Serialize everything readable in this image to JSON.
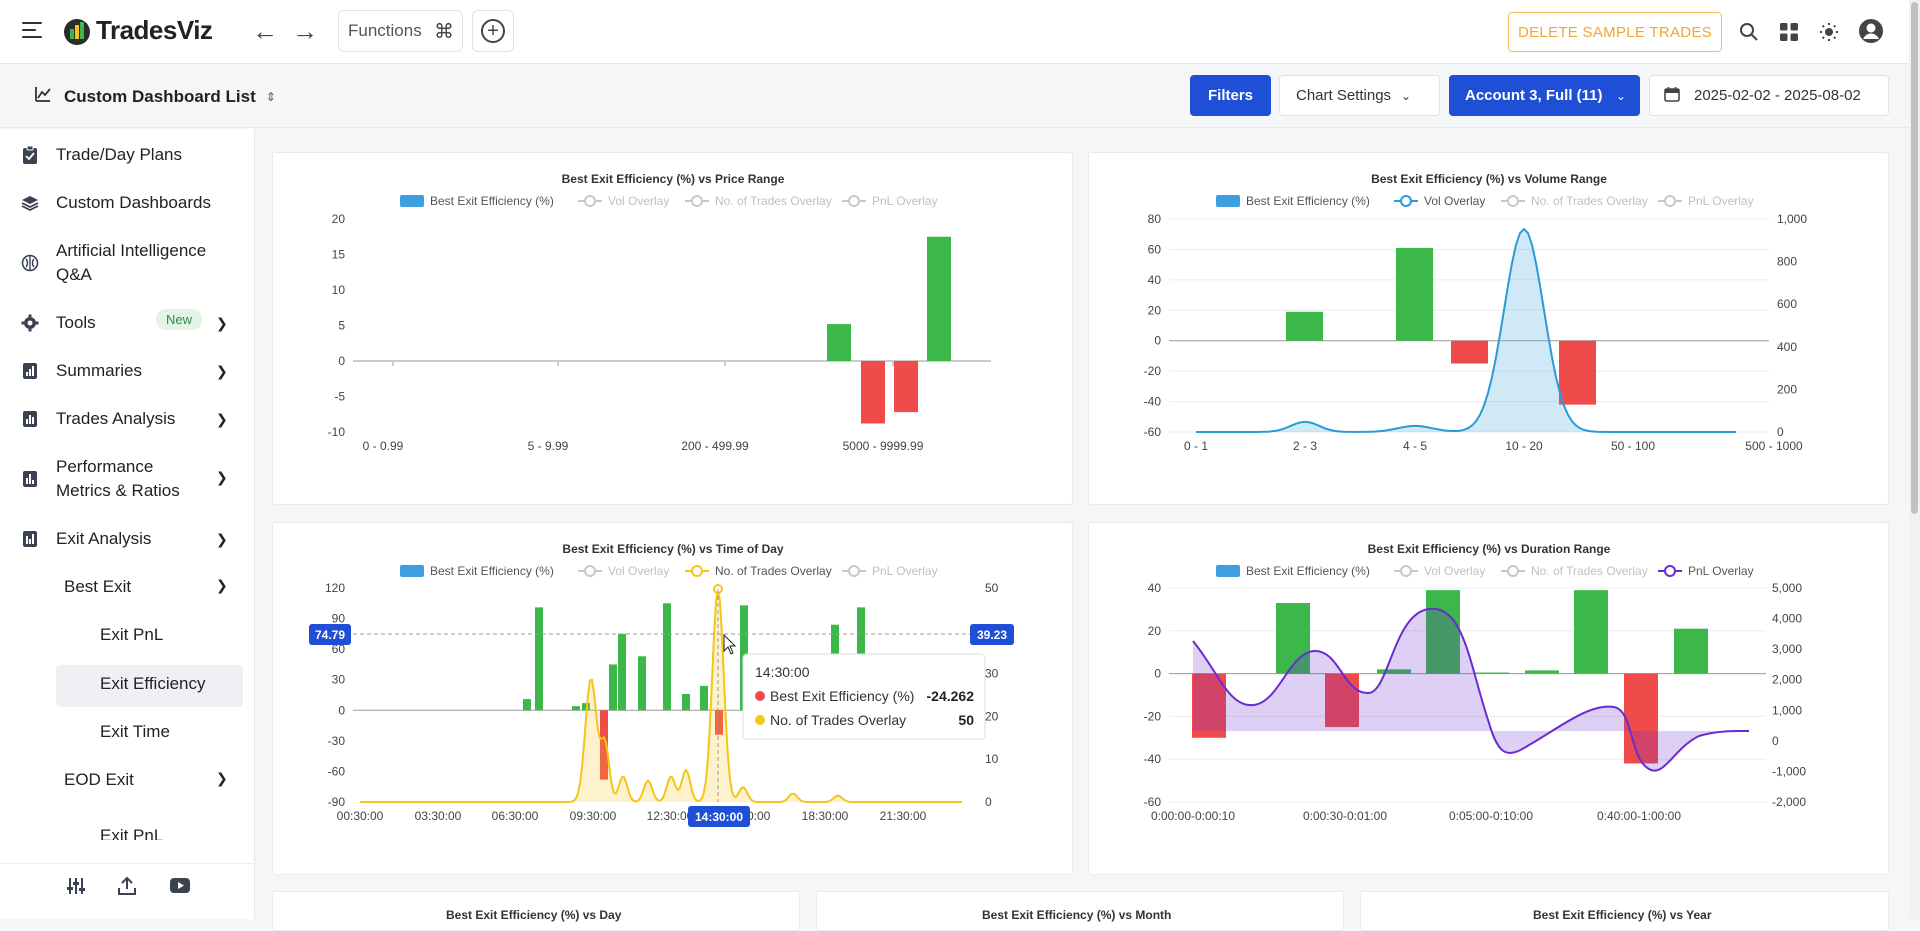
{
  "header": {
    "logo_text": "TradesViz",
    "functions_label": "Functions",
    "delete_label": "DELETE SAMPLE TRADES"
  },
  "subheader": {
    "dashboard_list": "Custom Dashboard List",
    "filters": "Filters",
    "chart_settings": "Chart Settings",
    "account": "Account 3, Full (11)",
    "date_range": "2025-02-02 - 2025-08-02"
  },
  "sidebar": {
    "items": [
      {
        "label": "Trade/Day Plans"
      },
      {
        "label": "Custom Dashboards"
      },
      {
        "label": "Artificial Intelligence Q&A"
      },
      {
        "label": "Tools",
        "badge": "New"
      },
      {
        "label": "Summaries"
      },
      {
        "label": "Trades Analysis"
      },
      {
        "label": "Performance Metrics & Ratios"
      },
      {
        "label": "Exit Analysis"
      }
    ],
    "sub": {
      "best_exit": "Best Exit",
      "exit_pnl": "Exit PnL",
      "exit_efficiency": "Exit Efficiency",
      "exit_time": "Exit Time",
      "eod_exit": "EOD Exit",
      "eod_exit_pnl": "Exit PnL"
    }
  },
  "legend": {
    "bee": "Best Exit Efficiency (%)",
    "vol": "Vol Overlay",
    "trades": "No. of Trades Overlay",
    "pnl": "PnL Overlay"
  },
  "tooltip": {
    "time": "14:30:00",
    "bee_label": "Best Exit Efficiency (%)",
    "bee_value": "-24.262",
    "trades_label": "No. of Trades Overlay",
    "trades_value": "50"
  },
  "crosshair": {
    "y_left": "74.79",
    "y_right": "39.23",
    "x_label": "14:30:00"
  },
  "bottom_titles": {
    "day": "Best Exit Efficiency (%) vs Day",
    "month": "Best Exit Efficiency (%) vs Month",
    "year": "Best Exit Efficiency (%) vs Year"
  },
  "colors": {
    "pos": "#3cb84a",
    "neg": "#f04b4b",
    "vol": "#2a9ad8",
    "trades": "#f5c518",
    "pnl": "#6a2bd0"
  },
  "chart_data": [
    {
      "type": "bar",
      "title": "Best Exit Efficiency (%)  vs Price Range",
      "ylim": [
        -10,
        20
      ],
      "yticks": [
        20,
        15,
        10,
        5,
        0,
        -5,
        -10
      ],
      "tick_labels": [
        "0 - 0.99",
        "5 - 9.99",
        "200 - 499.99",
        "5000 - 9999.99"
      ],
      "values": [
        5.2,
        -8.8,
        -7.2,
        17.5
      ]
    },
    {
      "type": "bar",
      "title": "Best Exit Efficiency (%)  vs Volume Range",
      "ylim": [
        -60,
        80
      ],
      "yticks": [
        80,
        60,
        40,
        20,
        0,
        -20,
        -40,
        -60
      ],
      "yticks_right": [
        "1,000",
        "800",
        "600",
        "400",
        "200",
        "0"
      ],
      "tick_labels": [
        "0 - 1",
        "2 - 3",
        "4 - 5",
        "10 - 20",
        "50 - 100",
        "500 - 1000"
      ],
      "values": [
        19,
        61,
        -15,
        -42
      ],
      "vol_overlay_peak": 1000
    },
    {
      "type": "bar",
      "title": "Best Exit Efficiency (%)  vs Time of Day",
      "ylim": [
        -90,
        120
      ],
      "yticks": [
        120,
        90,
        60,
        30,
        0,
        -30,
        -60,
        -90
      ],
      "yticks_right": [
        "50",
        "40",
        "30",
        "20",
        "10",
        "0"
      ],
      "tick_labels": [
        "00:30:00",
        "03:30:00",
        "06:30:00",
        "09:30:00",
        "12:30:00",
        "15:30:00",
        "18:30:00",
        "21:30:00"
      ],
      "values": [
        11,
        101,
        4,
        7,
        -68,
        45,
        75,
        53,
        105,
        16,
        24,
        -24,
        103,
        84,
        101
      ]
    },
    {
      "type": "bar",
      "title": "Best Exit Efficiency (%)  vs Duration Range",
      "ylim": [
        -60,
        40
      ],
      "yticks": [
        40,
        20,
        0,
        -20,
        -40,
        -60
      ],
      "yticks_right": [
        "5,000",
        "4,000",
        "3,000",
        "2,000",
        "1,000",
        "0",
        "-1,000",
        "-2,000"
      ],
      "tick_labels": [
        "0:00:00-0:00:10",
        "0:00:30-0:01:00",
        "0:05:00-0:10:00",
        "0:40:00-1:00:00"
      ],
      "values": [
        -30,
        33,
        -25,
        2,
        39,
        0.5,
        1.5,
        39,
        -42,
        21
      ]
    }
  ]
}
